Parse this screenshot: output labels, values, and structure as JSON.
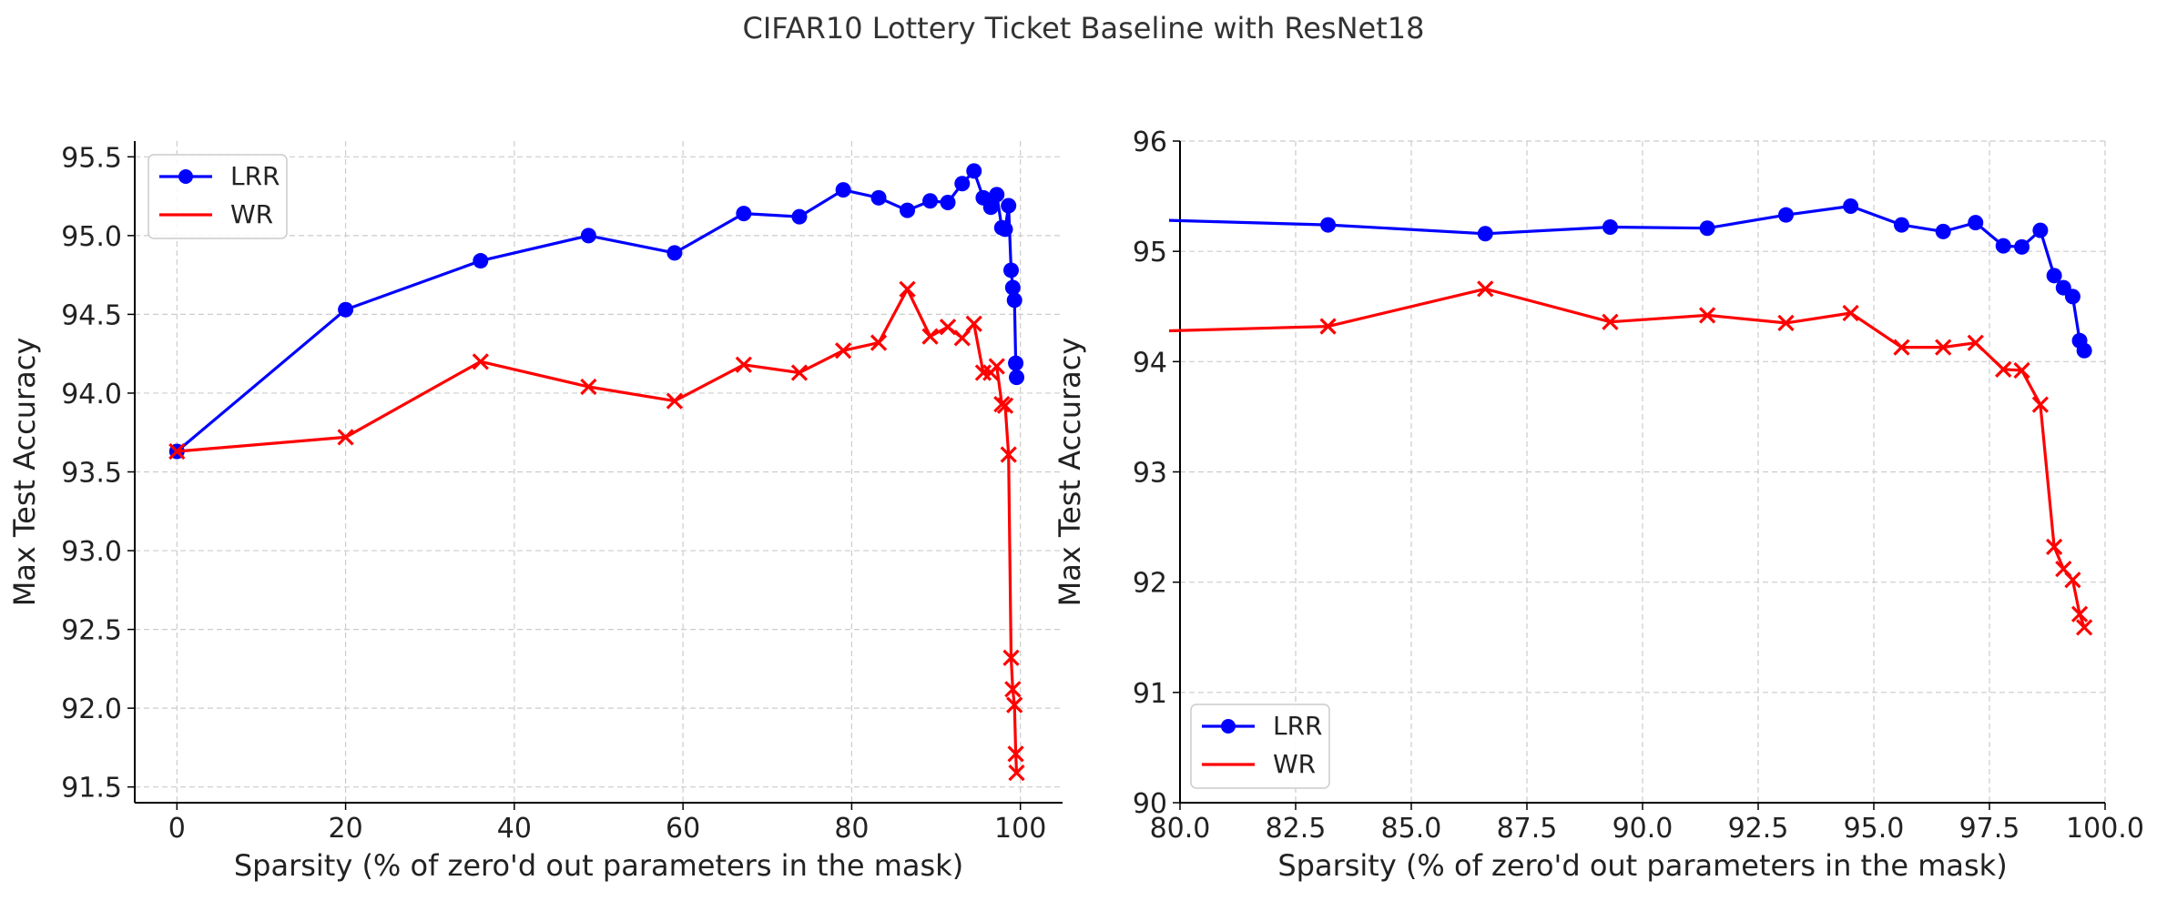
{
  "figure_title": "CIFAR10 Lottery Ticket Baseline with ResNet18",
  "colors": {
    "lrr": "#0000ff",
    "wr": "#ff0000",
    "grid": "#cccccc",
    "axis": "#000000"
  },
  "chart_data": [
    {
      "type": "line",
      "title": "",
      "xlabel": "Sparsity (% of zero'd out parameters in the mask)",
      "ylabel": "Max Test Accuracy",
      "xlim": [
        -5,
        105
      ],
      "ylim": [
        91.4,
        95.6
      ],
      "xticks": [
        0,
        20,
        40,
        60,
        80,
        100
      ],
      "xtick_labels": [
        "0",
        "20",
        "40",
        "60",
        "80",
        "100"
      ],
      "yticks": [
        91.5,
        92.0,
        92.5,
        93.0,
        93.5,
        94.0,
        94.5,
        95.0,
        95.5
      ],
      "ytick_labels": [
        "91.5",
        "92.0",
        "92.5",
        "93.0",
        "93.5",
        "94.0",
        "94.5",
        "95.0",
        "95.5"
      ],
      "grid": true,
      "legend": "top-left",
      "series": [
        {
          "name": "LRR",
          "marker": "circle",
          "color": "#0000ff",
          "x": [
            0,
            20,
            36,
            48.8,
            59,
            67.2,
            73.8,
            79,
            83.2,
            86.6,
            89.3,
            91.4,
            93.1,
            94.5,
            95.6,
            96.5,
            97.2,
            97.8,
            98.2,
            98.6,
            98.9,
            99.1,
            99.3,
            99.45,
            99.55
          ],
          "y": [
            93.63,
            94.53,
            94.84,
            95.0,
            94.89,
            95.14,
            95.12,
            95.29,
            95.24,
            95.16,
            95.22,
            95.21,
            95.33,
            95.41,
            95.24,
            95.18,
            95.26,
            95.05,
            95.04,
            95.19,
            94.78,
            94.67,
            94.59,
            94.19,
            94.1
          ]
        },
        {
          "name": "WR",
          "marker": "x",
          "color": "#ff0000",
          "x": [
            0,
            20,
            36,
            48.8,
            59,
            67.2,
            73.8,
            79,
            83.2,
            86.6,
            89.3,
            91.4,
            93.1,
            94.5,
            95.6,
            96.5,
            97.2,
            97.8,
            98.2,
            98.6,
            98.9,
            99.1,
            99.3,
            99.45,
            99.55
          ],
          "y": [
            93.63,
            93.72,
            94.2,
            94.04,
            93.95,
            94.18,
            94.13,
            94.27,
            94.32,
            94.66,
            94.36,
            94.42,
            94.35,
            94.44,
            94.13,
            94.13,
            94.17,
            93.93,
            93.92,
            93.61,
            92.32,
            92.12,
            92.02,
            91.71,
            91.59
          ]
        }
      ]
    },
    {
      "type": "line",
      "title": "",
      "xlabel": "Sparsity (% of zero'd out parameters in the mask)",
      "ylabel": "Max Test Accuracy",
      "xlim": [
        80,
        100
      ],
      "ylim": [
        90,
        96
      ],
      "xticks": [
        80,
        82.5,
        85,
        87.5,
        90,
        92.5,
        95,
        97.5,
        100
      ],
      "xtick_labels": [
        "80.0",
        "82.5",
        "85.0",
        "87.5",
        "90.0",
        "92.5",
        "95.0",
        "97.5",
        "100.0"
      ],
      "yticks": [
        90,
        91,
        92,
        93,
        94,
        95,
        96
      ],
      "ytick_labels": [
        "90",
        "91",
        "92",
        "93",
        "94",
        "95",
        "96"
      ],
      "grid": true,
      "legend": "bottom-left",
      "series": [
        {
          "name": "LRR",
          "marker": "circle",
          "color": "#0000ff",
          "x": [
            79,
            83.2,
            86.6,
            89.3,
            91.4,
            93.1,
            94.5,
            95.6,
            96.5,
            97.2,
            97.8,
            98.2,
            98.6,
            98.9,
            99.1,
            99.3,
            99.45,
            99.55
          ],
          "y": [
            95.29,
            95.24,
            95.16,
            95.22,
            95.21,
            95.33,
            95.41,
            95.24,
            95.18,
            95.26,
            95.05,
            95.04,
            95.19,
            94.78,
            94.67,
            94.59,
            94.19,
            94.1
          ]
        },
        {
          "name": "WR",
          "marker": "x",
          "color": "#ff0000",
          "x": [
            79,
            83.2,
            86.6,
            89.3,
            91.4,
            93.1,
            94.5,
            95.6,
            96.5,
            97.2,
            97.8,
            98.2,
            98.6,
            98.9,
            99.1,
            99.3,
            99.45,
            99.55
          ],
          "y": [
            94.27,
            94.32,
            94.66,
            94.36,
            94.42,
            94.35,
            94.44,
            94.13,
            94.13,
            94.17,
            93.93,
            93.92,
            93.61,
            92.32,
            92.12,
            92.02,
            91.71,
            91.59
          ]
        }
      ]
    }
  ]
}
